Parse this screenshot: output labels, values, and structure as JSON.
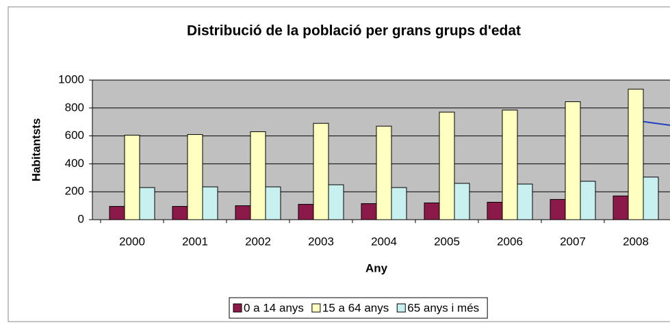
{
  "chart_data": {
    "type": "bar",
    "title": "Distribució de la població per grans grups d'edat",
    "x_label": "Any",
    "y_label": "Habitantsts",
    "categories": [
      "2000",
      "2001",
      "2002",
      "2003",
      "2004",
      "2005",
      "2006",
      "2007",
      "2008"
    ],
    "series": [
      {
        "name": "0 a 14 anys",
        "color": "#8b1a4a",
        "values": [
          95,
          95,
          100,
          110,
          115,
          120,
          125,
          145,
          170
        ]
      },
      {
        "name": "15 a 64 anys",
        "color": "#ffffc0",
        "values": [
          605,
          610,
          630,
          690,
          670,
          770,
          785,
          845,
          935
        ]
      },
      {
        "name": "65 anys i més",
        "color": "#c8f0f0",
        "values": [
          230,
          235,
          235,
          250,
          230,
          260,
          255,
          275,
          305
        ]
      }
    ],
    "ylim": [
      0,
      1000
    ],
    "yticks": [
      0,
      200,
      400,
      600,
      800,
      1000
    ],
    "grid": true,
    "legend": "bottom"
  }
}
